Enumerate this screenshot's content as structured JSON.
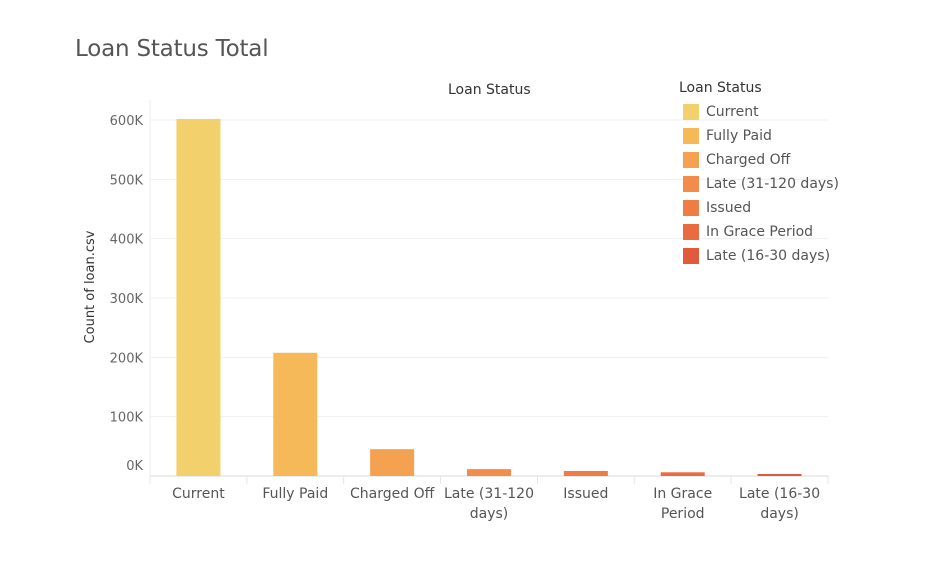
{
  "chart_data": {
    "type": "bar",
    "title": "Loan Status Total",
    "column_header": "Loan Status",
    "ylabel": "Count of loan.csv",
    "categories": [
      "Current",
      "Fully Paid",
      "Charged Off",
      "Late (31-120 days)",
      "Issued",
      "In Grace Period",
      "Late (16-30 days)"
    ],
    "category_label_lines": [
      [
        "Current"
      ],
      [
        "Fully Paid"
      ],
      [
        "Charged Off"
      ],
      [
        "Late (31-120",
        "days)"
      ],
      [
        "Issued"
      ],
      [
        "In Grace",
        "Period"
      ],
      [
        "Late (16-30",
        "days)"
      ]
    ],
    "values": [
      601779,
      207723,
      45248,
      11591,
      8460,
      6253,
      2357
    ],
    "colors": [
      "#f2d06b",
      "#f5b95a",
      "#f4a24f",
      "#f28c4a",
      "#ef7b45",
      "#e96b40",
      "#e05a3b"
    ],
    "yticks": [
      0,
      100000,
      200000,
      300000,
      400000,
      500000,
      600000
    ],
    "ytick_labels": [
      "0K",
      "100K",
      "200K",
      "300K",
      "400K",
      "500K",
      "600K"
    ],
    "ylim": [
      0,
      600000
    ],
    "grid": true,
    "legend": {
      "title": "Loan Status",
      "position": "top-right",
      "items": [
        "Current",
        "Fully Paid",
        "Charged Off",
        "Late (31-120 days)",
        "Issued",
        "In Grace Period",
        "Late (16-30 days)"
      ]
    }
  }
}
